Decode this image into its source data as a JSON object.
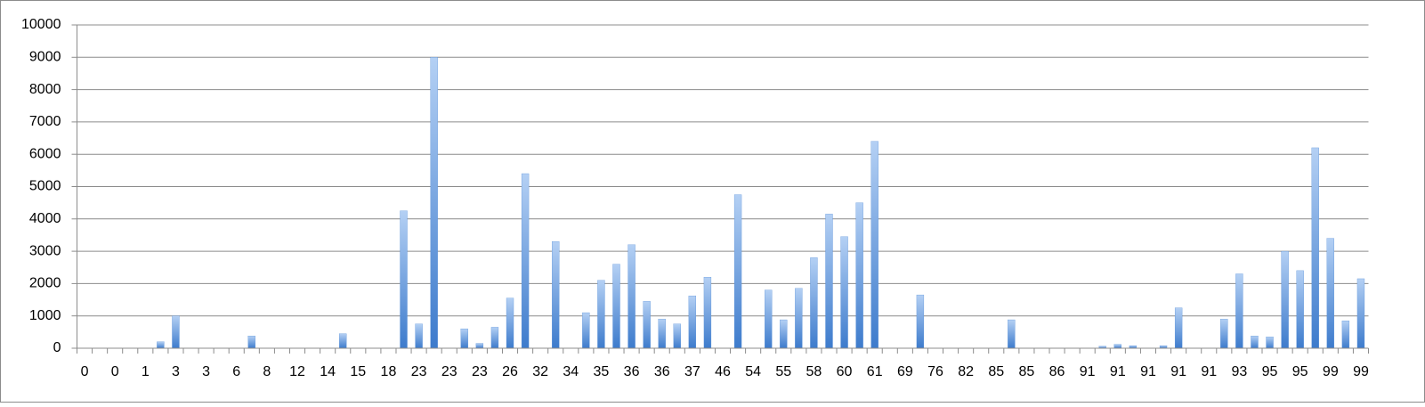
{
  "chart_data": {
    "type": "bar",
    "categories": [
      "0",
      null,
      "0",
      null,
      "1",
      null,
      "3",
      null,
      "3",
      null,
      "6",
      null,
      "8",
      null,
      "12",
      null,
      "14",
      null,
      "15",
      null,
      "18",
      null,
      "23",
      null,
      "23",
      null,
      "23",
      null,
      "26",
      null,
      "32",
      null,
      "34",
      null,
      "35",
      null,
      "36",
      null,
      "36",
      null,
      "37",
      null,
      "46",
      null,
      "54",
      null,
      "55",
      null,
      "58",
      null,
      "60",
      null,
      "61",
      null,
      "69",
      null,
      "76",
      null,
      "82",
      null,
      "85",
      null,
      "85",
      null,
      "86",
      null,
      "91",
      null,
      "91",
      null,
      "91",
      null,
      "91",
      null,
      "91",
      null,
      "93",
      null,
      "95",
      null,
      "95",
      null,
      "99",
      null,
      "99"
    ],
    "values": [
      0,
      0,
      0,
      0,
      0,
      200,
      1000,
      0,
      0,
      0,
      0,
      380,
      0,
      0,
      0,
      0,
      0,
      450,
      0,
      0,
      0,
      4250,
      750,
      9000,
      0,
      600,
      150,
      650,
      1550,
      5400,
      0,
      3300,
      0,
      1100,
      2100,
      2600,
      3200,
      1450,
      900,
      750,
      1620,
      2200,
      0,
      4750,
      0,
      1800,
      880,
      1850,
      2800,
      4150,
      3450,
      4500,
      6400,
      0,
      0,
      1650,
      0,
      0,
      0,
      0,
      0,
      880,
      0,
      0,
      0,
      0,
      0,
      60,
      120,
      80,
      0,
      80,
      1250,
      0,
      0,
      900,
      2300,
      380,
      350,
      3000,
      2400,
      6200,
      3400,
      850,
      2150
    ],
    "color": "#4a86d4",
    "ylim": [
      0,
      10000
    ],
    "yticks": [
      0,
      1000,
      2000,
      3000,
      4000,
      5000,
      6000,
      7000,
      8000,
      9000,
      10000
    ],
    "grid": true
  }
}
